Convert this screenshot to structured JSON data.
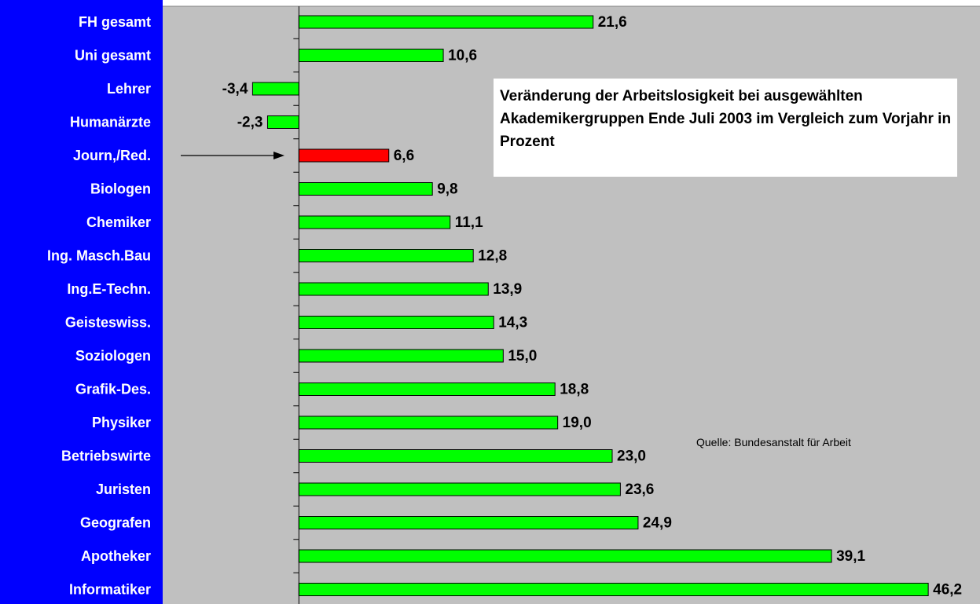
{
  "chart_data": {
    "type": "barh",
    "title": "Veränderung der Arbeitslosigkeit bei ausgewählten Akademikergruppen Ende Juli 2003 im Vergleich zum Vorjahr in Prozent",
    "source": "Quelle: Bundesanstalt für Arbeit",
    "categories": [
      "FH gesamt",
      "Uni gesamt",
      "Lehrer",
      "Humanärzte",
      "Journ,/Red.",
      "Biologen",
      "Chemiker",
      "Ing. Masch.Bau",
      "Ing.E-Techn.",
      "Geisteswiss.",
      "Soziologen",
      "Grafik-Des.",
      "Physiker",
      "Betriebswirte",
      "Juristen",
      "Geografen",
      "Apotheker",
      "Informatiker"
    ],
    "values": [
      21.6,
      10.6,
      -3.4,
      -2.3,
      6.6,
      9.8,
      11.1,
      12.8,
      13.9,
      14.3,
      15.0,
      18.8,
      19.0,
      23.0,
      23.6,
      24.9,
      39.1,
      46.2
    ],
    "value_labels": [
      "21,6",
      "10,6",
      "-3,4",
      "-2,3",
      "6,6",
      "9,8",
      "11,1",
      "12,8",
      "13,9",
      "14,3",
      "15,0",
      "18,8",
      "19,0",
      "23,0",
      "23,6",
      "24,9",
      "39,1",
      "46,2"
    ],
    "colors": [
      "#00ff00",
      "#00ff00",
      "#00ff00",
      "#00ff00",
      "#ff0000",
      "#00ff00",
      "#00ff00",
      "#00ff00",
      "#00ff00",
      "#00ff00",
      "#00ff00",
      "#00ff00",
      "#00ff00",
      "#00ff00",
      "#00ff00",
      "#00ff00",
      "#00ff00",
      "#00ff00"
    ],
    "xlim": [
      -10,
      50
    ]
  }
}
